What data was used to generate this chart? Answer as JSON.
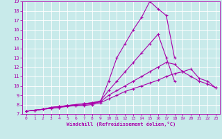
{
  "xlabel": "Windchill (Refroidissement éolien,°C)",
  "ylabel": "",
  "bg_color": "#c8eaea",
  "line_color": "#aa00aa",
  "grid_color": "#ffffff",
  "xlim": [
    -0.5,
    23.5
  ],
  "ylim": [
    7,
    19
  ],
  "xticks": [
    0,
    1,
    2,
    3,
    4,
    5,
    6,
    7,
    8,
    9,
    10,
    11,
    12,
    13,
    14,
    15,
    16,
    17,
    18,
    19,
    20,
    21,
    22,
    23
  ],
  "yticks": [
    7,
    8,
    9,
    10,
    11,
    12,
    13,
    14,
    15,
    16,
    17,
    18,
    19
  ],
  "series": [
    {
      "x": [
        0,
        1,
        2,
        3,
        4,
        5,
        6,
        7,
        8,
        9,
        10,
        11,
        12,
        13,
        14,
        15,
        16,
        17,
        18,
        19,
        20,
        21,
        22,
        23
      ],
      "y": [
        7.3,
        7.4,
        7.5,
        7.7,
        7.8,
        7.9,
        8.0,
        8.1,
        8.2,
        8.3,
        10.5,
        13.0,
        14.5,
        16.0,
        17.3,
        19.0,
        18.2,
        17.5,
        13.0,
        null,
        null,
        null,
        null,
        null
      ]
    },
    {
      "x": [
        0,
        1,
        2,
        3,
        4,
        5,
        6,
        7,
        8,
        9,
        10,
        11,
        12,
        13,
        14,
        15,
        16,
        17,
        18,
        19,
        20,
        21,
        22,
        23
      ],
      "y": [
        7.3,
        7.4,
        7.5,
        7.7,
        7.8,
        7.9,
        8.0,
        8.1,
        8.2,
        8.4,
        9.5,
        10.5,
        11.5,
        12.5,
        13.5,
        14.5,
        15.5,
        13.0,
        10.5,
        null,
        null,
        null,
        null,
        null
      ]
    },
    {
      "x": [
        0,
        1,
        2,
        3,
        4,
        5,
        6,
        7,
        8,
        9,
        10,
        11,
        12,
        13,
        14,
        15,
        16,
        17,
        18,
        19,
        20,
        21,
        22,
        23
      ],
      "y": [
        7.3,
        7.4,
        7.5,
        7.6,
        7.7,
        7.9,
        7.9,
        8.0,
        8.1,
        8.3,
        9.0,
        9.5,
        10.0,
        10.5,
        11.0,
        11.5,
        12.0,
        12.5,
        12.3,
        11.5,
        11.8,
        10.8,
        10.5,
        9.8
      ]
    },
    {
      "x": [
        0,
        1,
        2,
        3,
        4,
        5,
        6,
        7,
        8,
        9,
        10,
        11,
        12,
        13,
        14,
        15,
        16,
        17,
        18,
        19,
        20,
        21,
        22,
        23
      ],
      "y": [
        7.3,
        7.4,
        7.5,
        7.6,
        7.7,
        7.8,
        7.9,
        7.9,
        8.0,
        8.2,
        8.6,
        9.0,
        9.4,
        9.7,
        10.0,
        10.3,
        10.6,
        11.0,
        11.3,
        11.5,
        11.0,
        10.5,
        10.2,
        9.8
      ]
    }
  ]
}
